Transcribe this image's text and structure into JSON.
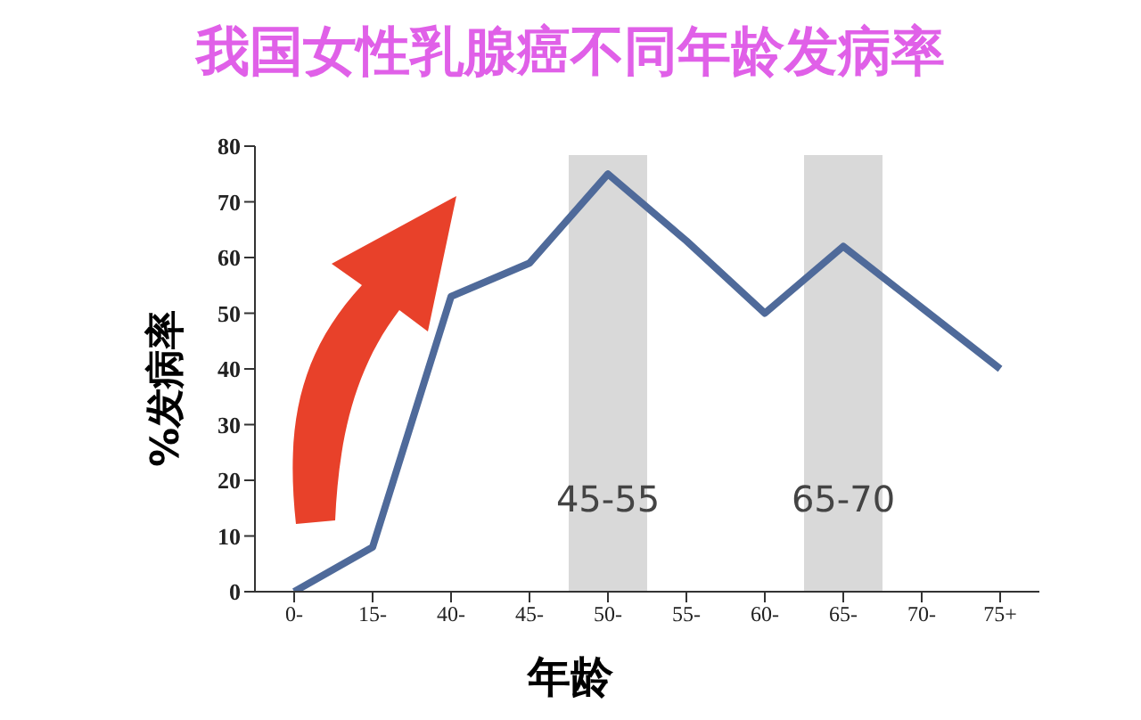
{
  "chart_data": {
    "type": "line",
    "title": "我国女性乳腺癌不同年龄发病率",
    "xlabel": "年龄",
    "ylabel": "%发病率",
    "categories": [
      "0-",
      "15-",
      "40-",
      "45-",
      "50-",
      "55-",
      "60-",
      "65-",
      "70-",
      "75+"
    ],
    "series": [
      {
        "color": "#4f6a9a",
        "values": [
          0,
          8,
          53,
          59,
          75,
          63,
          50,
          62,
          51,
          40
        ]
      }
    ],
    "ylim": [
      0,
      80
    ],
    "yticks": [
      0,
      10,
      20,
      30,
      40,
      50,
      60,
      70,
      80
    ],
    "grid": false,
    "legend": false,
    "marker": "none",
    "line_style": "solid",
    "bands": [
      {
        "axis": "x",
        "from": "50-",
        "to": "50-",
        "label": "45-55",
        "color": "#d9d9d9"
      },
      {
        "axis": "x",
        "from": "65-",
        "to": "65-",
        "label": "65-70",
        "color": "#d9d9d9"
      }
    ]
  }
}
